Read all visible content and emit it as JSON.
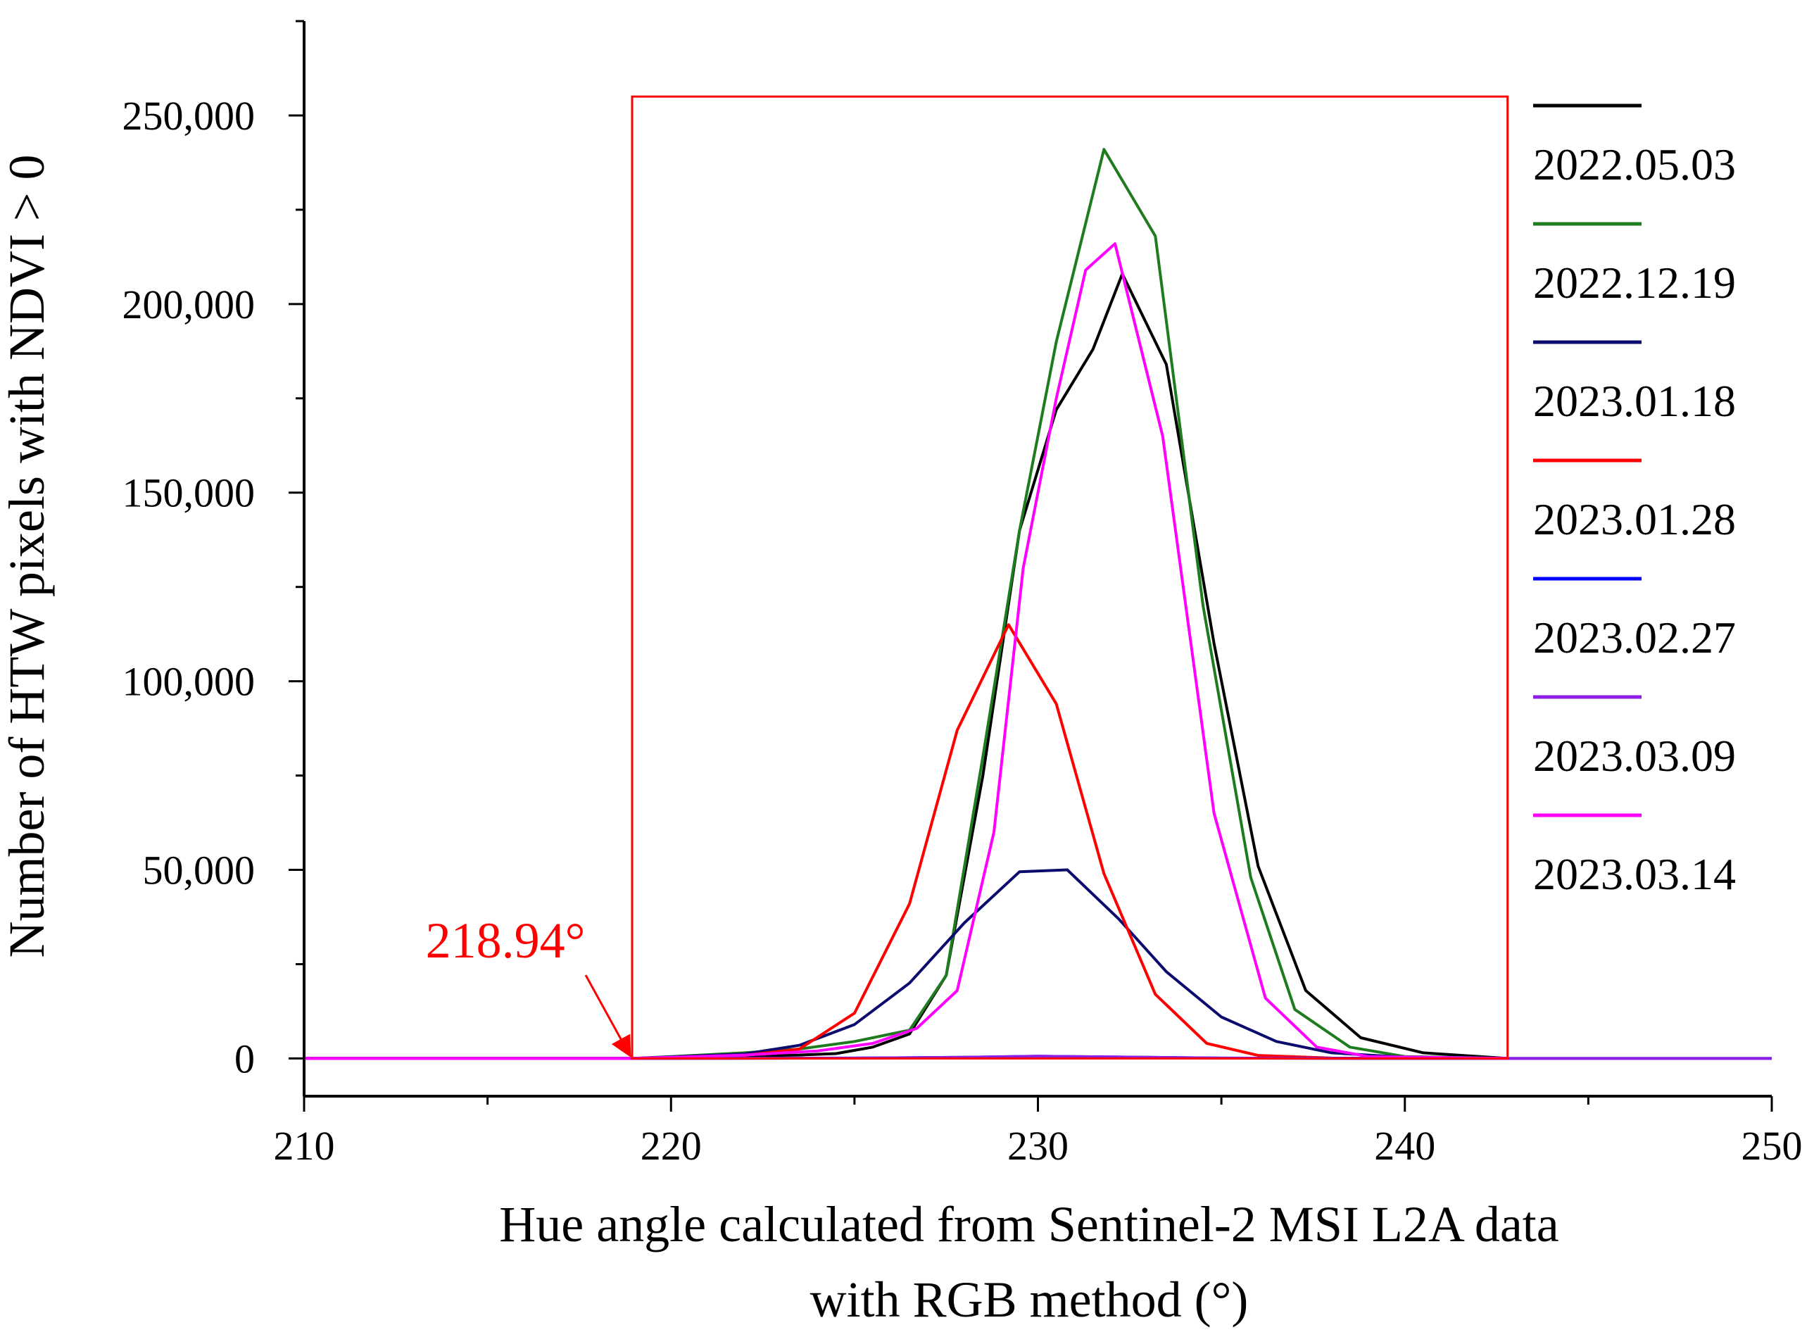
{
  "chart_data": {
    "type": "line",
    "title": "",
    "xlabel_lines": [
      "Hue angle calculated from Sentinel-2 MSI L2A data",
      "with RGB method (°)"
    ],
    "ylabel": "Number of HTW pixels with NDVI > 0",
    "xlim": [
      210,
      250
    ],
    "ylim": [
      -10000,
      275000
    ],
    "x_ticks": [
      210,
      220,
      230,
      240,
      250
    ],
    "x_tick_labels": [
      "210",
      "220",
      "230",
      "240",
      "250"
    ],
    "y_ticks": [
      0,
      50000,
      100000,
      150000,
      200000,
      250000
    ],
    "y_tick_labels": [
      "0",
      "50,000",
      "100,000",
      "150,000",
      "200,000",
      "250,000"
    ],
    "grid": false,
    "legend_position": "right",
    "series": [
      {
        "name": "2022.05.03",
        "color": "#000000",
        "x": [
          210,
          215,
          218.94,
          220,
          222,
          223.5,
          224.5,
          225.5,
          226.5,
          227.5,
          228.5,
          229.5,
          230.5,
          231.5,
          232.3,
          233.5,
          234.8,
          236,
          237.3,
          238.8,
          240.5,
          242.8
        ],
        "y": [
          0,
          0,
          0,
          300,
          700,
          900,
          1300,
          3000,
          6500,
          22000,
          75000,
          140000,
          172000,
          188000,
          208000,
          184000,
          110000,
          51000,
          18000,
          5500,
          1500,
          0
        ]
      },
      {
        "name": "2022.12.19",
        "color": "#1e7b1e",
        "x": [
          210,
          215,
          218.94,
          220,
          222,
          223.5,
          225,
          226.5,
          227.5,
          228.5,
          229.5,
          230.5,
          231.8,
          233.2,
          234.5,
          235.8,
          237,
          238.5,
          240,
          242.8
        ],
        "y": [
          0,
          0,
          0,
          500,
          1500,
          2500,
          4500,
          7500,
          22000,
          80000,
          140000,
          190000,
          241000,
          218000,
          120000,
          48000,
          13000,
          3000,
          500,
          0
        ]
      },
      {
        "name": "2023.01.18",
        "color": "#0c0c6e",
        "x": [
          210,
          215,
          218.94,
          220,
          222,
          223.5,
          225,
          226.5,
          228,
          229.5,
          230.8,
          232.2,
          233.5,
          235,
          236.5,
          238,
          240,
          242.8
        ],
        "y": [
          0,
          0,
          0,
          400,
          1200,
          3500,
          9000,
          20000,
          36000,
          49500,
          50000,
          37000,
          23000,
          11000,
          4500,
          1500,
          300,
          0
        ]
      },
      {
        "name": "2023.01.28",
        "color": "#ff0000",
        "x": [
          210,
          215,
          218.94,
          220,
          222,
          223.5,
          225,
          226.5,
          227.8,
          229.2,
          230.5,
          231.8,
          233.2,
          234.6,
          236,
          238,
          240,
          242.8
        ],
        "y": [
          0,
          0,
          0,
          200,
          800,
          2500,
          12000,
          41000,
          87000,
          115000,
          94000,
          49000,
          17000,
          4000,
          800,
          100,
          0,
          0
        ]
      },
      {
        "name": "2023.02.27",
        "color": "#0000ff",
        "x": [
          210,
          215,
          218.94,
          225,
          228,
          230,
          232,
          235,
          240,
          250
        ],
        "y": [
          0,
          0,
          0,
          100,
          300,
          600,
          400,
          100,
          0,
          0
        ]
      },
      {
        "name": "2023.03.09",
        "color": "#8c1ee6",
        "x": [
          210,
          215,
          218.94,
          225,
          228,
          230,
          232,
          235,
          240,
          250
        ],
        "y": [
          0,
          0,
          0,
          100,
          300,
          600,
          400,
          100,
          0,
          0
        ]
      },
      {
        "name": "2023.03.14",
        "color": "#ff00ff",
        "x": [
          210,
          215,
          218.94,
          220,
          222,
          224,
          225.5,
          226.7,
          227.8,
          228.8,
          229.6,
          230.5,
          231.3,
          232.1,
          233.4,
          234.8,
          236.2,
          237.6,
          239,
          242.8
        ],
        "y": [
          0,
          0,
          0,
          300,
          900,
          2000,
          4000,
          8000,
          18000,
          60000,
          130000,
          175000,
          209000,
          216000,
          165000,
          65000,
          16000,
          3000,
          500,
          0
        ]
      }
    ],
    "highlight_box": {
      "color": "#ff0000",
      "x_range": [
        218.94,
        242.8
      ],
      "y_top": 255000
    },
    "annotation": {
      "text": "218.94°",
      "color": "#ff0000",
      "x": 218.94,
      "y": 0
    }
  }
}
